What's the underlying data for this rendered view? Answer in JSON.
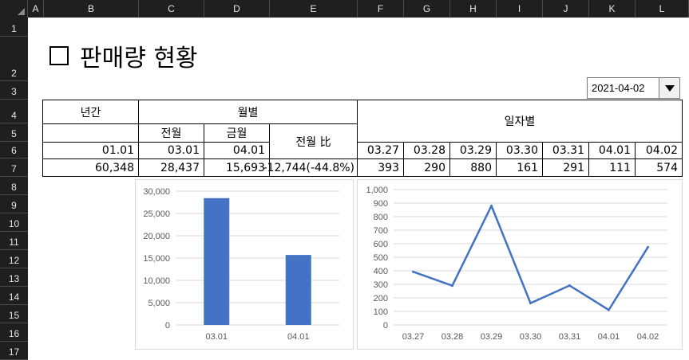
{
  "sheet": {
    "columns": [
      "A",
      "B",
      "C",
      "D",
      "E",
      "F",
      "G",
      "H",
      "I",
      "J",
      "K",
      "L"
    ],
    "rows": [
      "1",
      "2",
      "3",
      "4",
      "5",
      "6",
      "7",
      "8",
      "9",
      "10",
      "11",
      "12",
      "13",
      "14",
      "15",
      "16",
      "17"
    ]
  },
  "title": "판매량 현황",
  "date_selector": {
    "value": "2021-04-02"
  },
  "table": {
    "annual_header": "년간",
    "monthly_header": "월별",
    "daily_header": "일자별",
    "prev_month_label": "전월",
    "this_month_label": "금월",
    "ratio_label": "전월 比",
    "annual_date": "01.01",
    "prev_month_date": "03.01",
    "this_month_date": "04.01",
    "daily_dates": [
      "03.27",
      "03.28",
      "03.29",
      "03.30",
      "03.31",
      "04.01",
      "04.02"
    ],
    "annual_value": "60,348",
    "prev_month_value": "28,437",
    "this_month_value": "15,693",
    "ratio_value": "-12,744(-44.8%)",
    "daily_values": [
      "393",
      "290",
      "880",
      "161",
      "291",
      "111",
      "574"
    ]
  },
  "colors": {
    "series": "#4472c4",
    "gridline": "#d9d9d9",
    "header_bg": "#1f1f1f"
  },
  "chart_data": [
    {
      "type": "bar",
      "categories": [
        "03.01",
        "04.01"
      ],
      "values": [
        28437,
        15693
      ],
      "ylim": [
        0,
        30000
      ],
      "yticks": [
        "0",
        "5,000",
        "10,000",
        "15,000",
        "20,000",
        "25,000",
        "30,000"
      ],
      "ytick_values": [
        0,
        5000,
        10000,
        15000,
        20000,
        25000,
        30000
      ],
      "grid": true
    },
    {
      "type": "line",
      "categories": [
        "03.27",
        "03.28",
        "03.29",
        "03.30",
        "03.31",
        "04.01",
        "04.02"
      ],
      "values": [
        393,
        290,
        880,
        161,
        291,
        111,
        574
      ],
      "ylim": [
        0,
        1000
      ],
      "yticks": [
        "0",
        "100",
        "200",
        "300",
        "400",
        "500",
        "600",
        "700",
        "800",
        "900",
        "1,000"
      ],
      "ytick_values": [
        0,
        100,
        200,
        300,
        400,
        500,
        600,
        700,
        800,
        900,
        1000
      ],
      "grid": true
    }
  ]
}
